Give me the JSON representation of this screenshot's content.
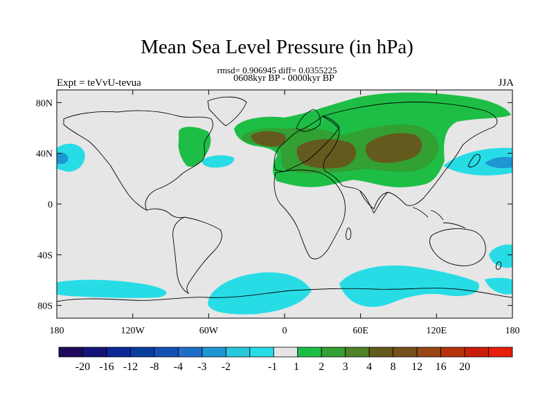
{
  "title": "Mean Sea Level Pressure (in hPa)",
  "subtitle": "rmsd= 0.906945 diff= 0.0355225",
  "period": "0608kyr BP - 0000kyr BP",
  "experiment": "Expt = teVvU-tevua",
  "season": "JJA",
  "map": {
    "projection": "cylindrical-equidistant",
    "lon_range": [
      -180,
      180
    ],
    "lat_range": [
      -90,
      90
    ],
    "background_color": "#e6e6e6",
    "lon_ticks": [
      {
        "value": -180,
        "label": "180"
      },
      {
        "value": -120,
        "label": "120W"
      },
      {
        "value": -60,
        "label": "60W"
      },
      {
        "value": 0,
        "label": "0"
      },
      {
        "value": 60,
        "label": "60E"
      },
      {
        "value": 120,
        "label": "120E"
      },
      {
        "value": 180,
        "label": "180"
      }
    ],
    "lat_ticks": [
      {
        "value": 80,
        "label": "80N"
      },
      {
        "value": 40,
        "label": "40N"
      },
      {
        "value": 0,
        "label": "0"
      },
      {
        "value": -40,
        "label": "40S"
      },
      {
        "value": -80,
        "label": "80S"
      }
    ]
  },
  "colorbar": {
    "colors": [
      "#1e0a5a",
      "#141478",
      "#0a2896",
      "#0a3ca0",
      "#1450b4",
      "#1e6ec8",
      "#1e96d2",
      "#28c8dc",
      "#28dce6",
      "#e6e6e6",
      "#1ebe46",
      "#32a032",
      "#508228",
      "#645a1e",
      "#78501e",
      "#964614",
      "#b4320a",
      "#c81e0a",
      "#e61e0a"
    ],
    "labels": [
      "-20",
      "-16",
      "-12",
      "-8",
      "-4",
      "-3",
      "-2",
      "-1",
      "1",
      "2",
      "3",
      "4",
      "8",
      "12",
      "16",
      "20"
    ]
  }
}
